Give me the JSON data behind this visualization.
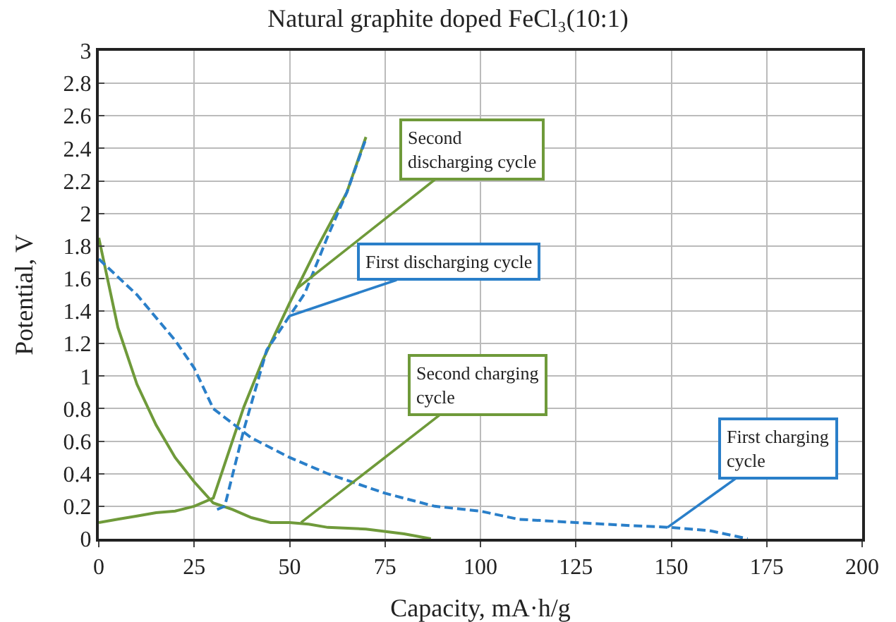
{
  "chart_data": {
    "type": "line",
    "title": "Natural graphite doped FeCl₃(10:1)",
    "xlabel": "Capacity, mA·h/g",
    "ylabel": "Potential, V",
    "xlim": [
      0,
      200
    ],
    "xticks": [
      0,
      25,
      50,
      75,
      100,
      125,
      150,
      175,
      200
    ],
    "ylim": [
      0,
      3
    ],
    "yticks": [
      0,
      0.2,
      0.4,
      0.6,
      0.8,
      1,
      1.2,
      1.4,
      1.6,
      1.8,
      2,
      2.2,
      2.4,
      2.6,
      2.8,
      3
    ],
    "grid": true,
    "series": [
      {
        "color": "#2a7fc9",
        "line_style": "dashed",
        "x": [
          0,
          10,
          20,
          25,
          30,
          40,
          50,
          60,
          75,
          88,
          100,
          110,
          125,
          140,
          150,
          160,
          170
        ],
        "values": [
          1.72,
          1.5,
          1.22,
          1.05,
          0.8,
          0.62,
          0.5,
          0.4,
          0.28,
          0.2,
          0.17,
          0.12,
          0.1,
          0.08,
          0.07,
          0.05,
          0
        ]
      },
      {
        "color": "#2a7fc9",
        "line_style": "dashed",
        "x": [
          31,
          33,
          38,
          44,
          50,
          54,
          60,
          65,
          70
        ],
        "values": [
          0.18,
          0.2,
          0.67,
          1.16,
          1.37,
          1.51,
          1.86,
          2.13,
          2.46
        ]
      },
      {
        "color": "#6f9a3a",
        "line_style": "solid",
        "x": [
          0,
          5,
          10,
          15,
          20,
          25,
          30,
          35,
          40,
          45,
          50,
          55,
          60,
          70,
          80,
          87
        ],
        "values": [
          1.85,
          1.3,
          0.95,
          0.7,
          0.5,
          0.35,
          0.22,
          0.18,
          0.13,
          0.1,
          0.1,
          0.09,
          0.07,
          0.06,
          0.03,
          0
        ]
      },
      {
        "color": "#6f9a3a",
        "line_style": "solid",
        "x": [
          0,
          5,
          10,
          15,
          20,
          25,
          30,
          33,
          38,
          43,
          50,
          57,
          65,
          70
        ],
        "values": [
          0.1,
          0.12,
          0.14,
          0.16,
          0.17,
          0.2,
          0.25,
          0.46,
          0.81,
          1.1,
          1.45,
          1.78,
          2.13,
          2.47
        ]
      }
    ],
    "annotations": [
      {
        "text": "Second\ndischarging cycle",
        "x": 52,
        "y": 1.54
      },
      {
        "text": "First discharging cycle",
        "x": 50,
        "y": 1.37
      },
      {
        "text": "Second charging\ncycle",
        "x": 53,
        "y": 0.1
      },
      {
        "text": "First charging\ncycle",
        "x": 149,
        "y": 0.07
      }
    ]
  }
}
